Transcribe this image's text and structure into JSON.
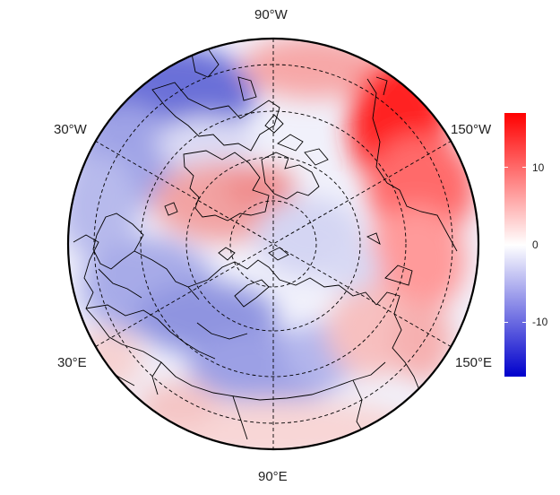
{
  "map": {
    "projection": "north-polar-stereographic",
    "graticule": "dashed",
    "longitude_labels": [
      "90°W",
      "30°W",
      "150°W",
      "30°E",
      "150°E",
      "90°E"
    ]
  },
  "colorbar": {
    "ticks": [
      "10",
      "0",
      "-10"
    ],
    "range": [
      -17,
      17
    ],
    "colors": {
      "low": "#0000cc",
      "mid": "#ffffff",
      "high": "#ff0000"
    }
  },
  "colors": {
    "coastline": "#000000",
    "graticule": "#000000",
    "background": "#ffffff"
  }
}
